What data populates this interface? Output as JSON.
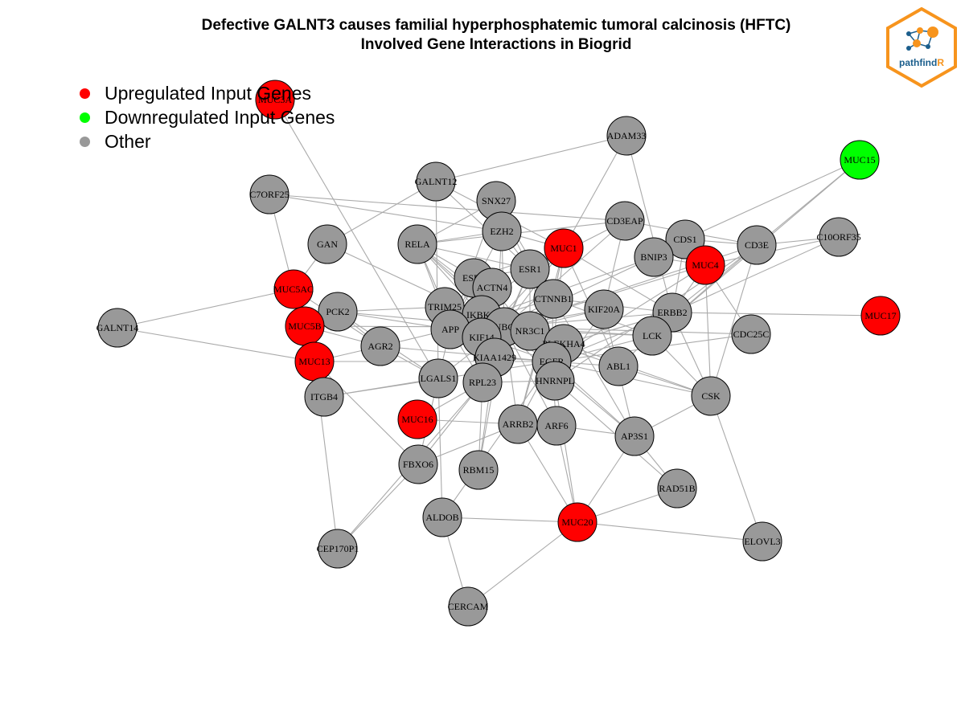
{
  "title": {
    "line1": "Defective GALNT3 causes familial hyperphosphatemic tumoral calcinosis (HFTC)",
    "line2": "Involved Gene Interactions in Biogrid"
  },
  "legend": [
    {
      "label": "Upregulated Input Genes",
      "color": "#ff0000"
    },
    {
      "label": "Downregulated Input Genes",
      "color": "#00ff00"
    },
    {
      "label": "Other",
      "color": "#999999"
    }
  ],
  "logo": {
    "text_main": "pathfind",
    "text_accent": "R",
    "border_color": "#f7941d",
    "accent_color": "#f7941d",
    "text_color": "#1b5e8c"
  },
  "colors": {
    "up": "#ff0000",
    "down": "#00ff00",
    "other": "#999999",
    "edge": "#aaaaaa"
  },
  "nodes": [
    {
      "id": "MUC3A",
      "type": "up"
    },
    {
      "id": "ADAM33",
      "type": "other"
    },
    {
      "id": "MUC15",
      "type": "down"
    },
    {
      "id": "GALNT12",
      "type": "other"
    },
    {
      "id": "C7ORF25",
      "type": "other"
    },
    {
      "id": "SNX27",
      "type": "other"
    },
    {
      "id": "CD3EAP",
      "type": "other"
    },
    {
      "id": "GAN",
      "type": "other"
    },
    {
      "id": "RELA",
      "type": "other"
    },
    {
      "id": "EZH2",
      "type": "other"
    },
    {
      "id": "MUC1",
      "type": "up"
    },
    {
      "id": "CDS1",
      "type": "other"
    },
    {
      "id": "CD3E",
      "type": "other"
    },
    {
      "id": "C10ORF35",
      "type": "other"
    },
    {
      "id": "BNIP3",
      "type": "other"
    },
    {
      "id": "MUC4",
      "type": "up"
    },
    {
      "id": "ESR1",
      "type": "other"
    },
    {
      "id": "ESR2",
      "type": "other"
    },
    {
      "id": "ACTN4",
      "type": "other"
    },
    {
      "id": "MUC5AC",
      "type": "up"
    },
    {
      "id": "CTNNB1",
      "type": "other"
    },
    {
      "id": "TRIM25",
      "type": "other"
    },
    {
      "id": "PCK2",
      "type": "other"
    },
    {
      "id": "KIF20A",
      "type": "other"
    },
    {
      "id": "ERBB2",
      "type": "other"
    },
    {
      "id": "MUC17",
      "type": "up"
    },
    {
      "id": "GALNT14",
      "type": "other"
    },
    {
      "id": "MUC5B",
      "type": "up"
    },
    {
      "id": "IKBKG",
      "type": "other"
    },
    {
      "id": "APP",
      "type": "other"
    },
    {
      "id": "UBC",
      "type": "other"
    },
    {
      "id": "NR3C1",
      "type": "other"
    },
    {
      "id": "LCK",
      "type": "other"
    },
    {
      "id": "CDC25C",
      "type": "other"
    },
    {
      "id": "KIF14",
      "type": "other"
    },
    {
      "id": "PLEKHA4",
      "type": "other"
    },
    {
      "id": "AGR2",
      "type": "other"
    },
    {
      "id": "MUC13",
      "type": "up"
    },
    {
      "id": "KIAA1429",
      "type": "other"
    },
    {
      "id": "EGFR",
      "type": "other"
    },
    {
      "id": "ABL1",
      "type": "other"
    },
    {
      "id": "LGALS1",
      "type": "other"
    },
    {
      "id": "RPL23",
      "type": "other"
    },
    {
      "id": "HNRNPL",
      "type": "other"
    },
    {
      "id": "ITGB4",
      "type": "other"
    },
    {
      "id": "CSK",
      "type": "other"
    },
    {
      "id": "MUC16",
      "type": "up"
    },
    {
      "id": "ARRB2",
      "type": "other"
    },
    {
      "id": "ARF6",
      "type": "other"
    },
    {
      "id": "AP3S1",
      "type": "other"
    },
    {
      "id": "FBXO6",
      "type": "other"
    },
    {
      "id": "RBM15",
      "type": "other"
    },
    {
      "id": "RAD51B",
      "type": "other"
    },
    {
      "id": "ALDOB",
      "type": "other"
    },
    {
      "id": "MUC20",
      "type": "up"
    },
    {
      "id": "CEP170P1",
      "type": "other"
    },
    {
      "id": "ELOVL3",
      "type": "other"
    },
    {
      "id": "CERCAM",
      "type": "other"
    }
  ],
  "edges": [
    [
      "MUC3A",
      "LGALS1"
    ],
    [
      "GALNT12",
      "ADAM33"
    ],
    [
      "ADAM33",
      "MUC1"
    ],
    [
      "ADAM33",
      "ERBB2"
    ],
    [
      "MUC15",
      "CD3E"
    ],
    [
      "MUC15",
      "CDS1"
    ],
    [
      "MUC15",
      "LCK"
    ],
    [
      "C7ORF25",
      "MUC5AC"
    ],
    [
      "C7ORF25",
      "CD3EAP"
    ],
    [
      "C7ORF25",
      "EZH2"
    ],
    [
      "GALNT12",
      "GAN"
    ],
    [
      "GALNT12",
      "LGALS1"
    ],
    [
      "GALNT12",
      "MUC1"
    ],
    [
      "GALNT12",
      "ESR1"
    ],
    [
      "SNX27",
      "RELA"
    ],
    [
      "SNX27",
      "APP"
    ],
    [
      "SNX27",
      "ESR1"
    ],
    [
      "SNX27",
      "CTNNB1"
    ],
    [
      "CD3EAP",
      "CD3E"
    ],
    [
      "CD3EAP",
      "RELA"
    ],
    [
      "CD3EAP",
      "KIF20A"
    ],
    [
      "CD3EAP",
      "UBC"
    ],
    [
      "CD3EAP",
      "ESR1"
    ],
    [
      "GAN",
      "UBC"
    ],
    [
      "GAN",
      "MUC5AC"
    ],
    [
      "RELA",
      "ESR1"
    ],
    [
      "RELA",
      "ACTN4"
    ],
    [
      "RELA",
      "UBC"
    ],
    [
      "RELA",
      "EGFR"
    ],
    [
      "RELA",
      "IKBKG"
    ],
    [
      "RELA",
      "EZH2"
    ],
    [
      "RELA",
      "TRIM25"
    ],
    [
      "RELA",
      "APP"
    ],
    [
      "RELA",
      "NR3C1"
    ],
    [
      "EZH2",
      "ESR1"
    ],
    [
      "EZH2",
      "UBC"
    ],
    [
      "EZH2",
      "APP"
    ],
    [
      "EZH2",
      "MUC1"
    ],
    [
      "EZH2",
      "KIAA1429"
    ],
    [
      "MUC1",
      "CTNNB1"
    ],
    [
      "MUC1",
      "EGFR"
    ],
    [
      "MUC1",
      "ESR1"
    ],
    [
      "MUC1",
      "ERBB2"
    ],
    [
      "MUC1",
      "UBC"
    ],
    [
      "MUC1",
      "ABL1"
    ],
    [
      "MUC1",
      "ARRB2"
    ],
    [
      "MUC1",
      "ESR2"
    ],
    [
      "MUC1",
      "KIF14"
    ],
    [
      "CDS1",
      "ERBB2"
    ],
    [
      "CDS1",
      "BNIP3"
    ],
    [
      "CDS1",
      "CD3E"
    ],
    [
      "CD3E",
      "LCK"
    ],
    [
      "CD3E",
      "C10ORF35"
    ],
    [
      "CD3E",
      "ERBB2"
    ],
    [
      "CD3E",
      "CSK"
    ],
    [
      "CD3E",
      "UBC"
    ],
    [
      "CD3E",
      "HNRNPL"
    ],
    [
      "C10ORF35",
      "ERBB2"
    ],
    [
      "C10ORF35",
      "MUC4"
    ],
    [
      "BNIP3",
      "UBC"
    ],
    [
      "BNIP3",
      "MUC4"
    ],
    [
      "BNIP3",
      "APP"
    ],
    [
      "MUC4",
      "ERBB2"
    ],
    [
      "MUC4",
      "EGFR"
    ],
    [
      "MUC4",
      "CSK"
    ],
    [
      "MUC4",
      "UBC"
    ],
    [
      "MUC4",
      "CDC25C"
    ],
    [
      "ESR1",
      "UBC"
    ],
    [
      "ESR1",
      "CTNNB1"
    ],
    [
      "ESR1",
      "EGFR"
    ],
    [
      "ESR1",
      "ESR2"
    ],
    [
      "ESR1",
      "APP"
    ],
    [
      "ESR1",
      "NR3C1"
    ],
    [
      "ESR1",
      "RPL23"
    ],
    [
      "ESR2",
      "UBC"
    ],
    [
      "ESR2",
      "APP"
    ],
    [
      "ESR2",
      "ACTN4"
    ],
    [
      "ACTN4",
      "UBC"
    ],
    [
      "ACTN4",
      "APP"
    ],
    [
      "ACTN4",
      "EGFR"
    ],
    [
      "MUC5AC",
      "GALNT14"
    ],
    [
      "MUC5AC",
      "AGR2"
    ],
    [
      "MUC5AC",
      "MUC5B"
    ],
    [
      "CTNNB1",
      "UBC"
    ],
    [
      "CTNNB1",
      "EGFR"
    ],
    [
      "CTNNB1",
      "ERBB2"
    ],
    [
      "CTNNB1",
      "LCK"
    ],
    [
      "CTNNB1",
      "APP"
    ],
    [
      "CTNNB1",
      "ARRB2"
    ],
    [
      "CTNNB1",
      "AP3S1"
    ],
    [
      "TRIM25",
      "UBC"
    ],
    [
      "TRIM25",
      "APP"
    ],
    [
      "TRIM25",
      "PCK2"
    ],
    [
      "PCK2",
      "UBC"
    ],
    [
      "PCK2",
      "APP"
    ],
    [
      "PCK2",
      "AGR2"
    ],
    [
      "PCK2",
      "LGALS1"
    ],
    [
      "KIF20A",
      "UBC"
    ],
    [
      "KIF20A",
      "AP3S1"
    ],
    [
      "KIF20A",
      "KIF14"
    ],
    [
      "KIF20A",
      "HNRNPL"
    ],
    [
      "ERBB2",
      "EGFR"
    ],
    [
      "ERBB2",
      "UBC"
    ],
    [
      "ERBB2",
      "MUC17"
    ],
    [
      "ERBB2",
      "LCK"
    ],
    [
      "ERBB2",
      "CSK"
    ],
    [
      "ERBB2",
      "PLEKHA4"
    ],
    [
      "GALNT14",
      "MUC13"
    ],
    [
      "MUC5B",
      "AGR2"
    ],
    [
      "MUC5B",
      "UBC"
    ],
    [
      "IKBKG",
      "UBC"
    ],
    [
      "IKBKG",
      "APP"
    ],
    [
      "APP",
      "UBC"
    ],
    [
      "APP",
      "AGR2"
    ],
    [
      "APP",
      "KIAA1429"
    ],
    [
      "APP",
      "LGALS1"
    ],
    [
      "APP",
      "RPL23"
    ],
    [
      "UBC",
      "NR3C1"
    ],
    [
      "UBC",
      "EGFR"
    ],
    [
      "UBC",
      "LCK"
    ],
    [
      "UBC",
      "PLEKHA4"
    ],
    [
      "UBC",
      "HNRNPL"
    ],
    [
      "UBC",
      "RPL23"
    ],
    [
      "UBC",
      "ARRB2"
    ],
    [
      "UBC",
      "KIF14"
    ],
    [
      "UBC",
      "CDC25C"
    ],
    [
      "UBC",
      "ABL1"
    ],
    [
      "UBC",
      "AP3S1"
    ],
    [
      "UBC",
      "RBM15"
    ],
    [
      "UBC",
      "ARF6"
    ],
    [
      "UBC",
      "LGALS1"
    ],
    [
      "NR3C1",
      "EGFR"
    ],
    [
      "NR3C1",
      "LCK"
    ],
    [
      "LCK",
      "EGFR"
    ],
    [
      "LCK",
      "CSK"
    ],
    [
      "LCK",
      "ABL1"
    ],
    [
      "CDC25C",
      "EGFR"
    ],
    [
      "KIF14",
      "EGFR"
    ],
    [
      "KIF14",
      "RPL23"
    ],
    [
      "PLEKHA4",
      "EGFR"
    ],
    [
      "PLEKHA4",
      "CSK"
    ],
    [
      "AGR2",
      "MUC13"
    ],
    [
      "AGR2",
      "EGFR"
    ],
    [
      "AGR2",
      "LGALS1"
    ],
    [
      "MUC13",
      "ITGB4"
    ],
    [
      "MUC13",
      "FBXO6"
    ],
    [
      "MUC13",
      "EGFR"
    ],
    [
      "KIAA1429",
      "EGFR"
    ],
    [
      "KIAA1429",
      "RBM15"
    ],
    [
      "EGFR",
      "ABL1"
    ],
    [
      "EGFR",
      "CSK"
    ],
    [
      "EGFR",
      "ARRB2"
    ],
    [
      "EGFR",
      "ARF6"
    ],
    [
      "EGFR",
      "AP3S1"
    ],
    [
      "EGFR",
      "ITGB4"
    ],
    [
      "EGFR",
      "HNRNPL"
    ],
    [
      "ABL1",
      "CSK"
    ],
    [
      "LGALS1",
      "ITGB4"
    ],
    [
      "LGALS1",
      "ALDOB"
    ],
    [
      "LGALS1",
      "FBXO6"
    ],
    [
      "RPL23",
      "FBXO6"
    ],
    [
      "RPL23",
      "RBM15"
    ],
    [
      "RPL23",
      "MUC16"
    ],
    [
      "RPL23",
      "HNRNPL"
    ],
    [
      "HNRNPL",
      "RAD51B"
    ],
    [
      "HNRNPL",
      "MUC20"
    ],
    [
      "CSK",
      "AP3S1"
    ],
    [
      "CSK",
      "ELOVL3"
    ],
    [
      "MUC16",
      "ARRB2"
    ],
    [
      "ARRB2",
      "MUC20"
    ],
    [
      "ARRB2",
      "FBXO6"
    ],
    [
      "ARF6",
      "AP3S1"
    ],
    [
      "ARF6",
      "MUC20"
    ],
    [
      "AP3S1",
      "RAD51B"
    ],
    [
      "AP3S1",
      "MUC20"
    ],
    [
      "FBXO6",
      "CEP170P1"
    ],
    [
      "RAD51B",
      "MUC20"
    ],
    [
      "ALDOB",
      "MUC20"
    ],
    [
      "ALDOB",
      "CERCAM"
    ],
    [
      "ALDOB",
      "EGFR"
    ],
    [
      "MUC20",
      "ELOVL3"
    ],
    [
      "MUC20",
      "CERCAM"
    ],
    [
      "CEP170P1",
      "MUC13"
    ],
    [
      "CEP170P1",
      "RPL23"
    ]
  ]
}
